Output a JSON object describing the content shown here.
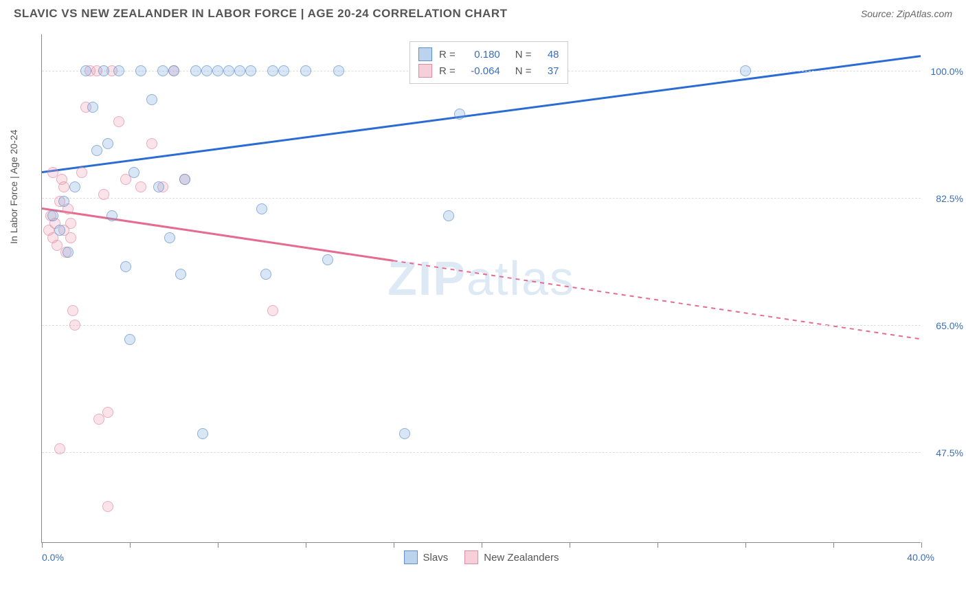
{
  "header": {
    "title": "SLAVIC VS NEW ZEALANDER IN LABOR FORCE | AGE 20-24 CORRELATION CHART",
    "source": "Source: ZipAtlas.com"
  },
  "axes": {
    "y_label": "In Labor Force | Age 20-24",
    "x_start": "0.0%",
    "x_end": "40.0%",
    "xlim": [
      0,
      40
    ],
    "ylim": [
      35,
      105
    ],
    "x_ticks": [
      0,
      4,
      8,
      12,
      16,
      20,
      24,
      28,
      32,
      36,
      40
    ],
    "y_ticks": [
      {
        "val": 100,
        "label": "100.0%"
      },
      {
        "val": 82.5,
        "label": "82.5%"
      },
      {
        "val": 65,
        "label": "65.0%"
      },
      {
        "val": 47.5,
        "label": "47.5%"
      }
    ]
  },
  "colors": {
    "blue_line": "#2b6cd4",
    "pink_line": "#e56b8f",
    "blue_fill": "rgba(122,167,220,0.4)",
    "pink_fill": "rgba(240,160,180,0.4)",
    "grid": "#dddddd",
    "text_axis": "#3b6fb5"
  },
  "series": {
    "slavs": {
      "label": "Slavs",
      "r_value": "0.180",
      "n_value": "48",
      "trend": {
        "x1": 0,
        "y1": 86,
        "x2": 40,
        "y2": 102,
        "solid_until_x": 40
      },
      "points": [
        [
          0.5,
          80
        ],
        [
          0.8,
          78
        ],
        [
          1.0,
          82
        ],
        [
          1.2,
          75
        ],
        [
          1.5,
          84
        ],
        [
          2.0,
          100
        ],
        [
          2.3,
          95
        ],
        [
          2.5,
          89
        ],
        [
          2.8,
          100
        ],
        [
          3.0,
          90
        ],
        [
          3.2,
          80
        ],
        [
          3.5,
          100
        ],
        [
          3.8,
          73
        ],
        [
          4.0,
          63
        ],
        [
          4.2,
          86
        ],
        [
          4.5,
          100
        ],
        [
          5.0,
          96
        ],
        [
          5.3,
          84
        ],
        [
          5.5,
          100
        ],
        [
          5.8,
          77
        ],
        [
          6.0,
          100
        ],
        [
          6.3,
          72
        ],
        [
          6.5,
          85
        ],
        [
          7.0,
          100
        ],
        [
          7.3,
          50
        ],
        [
          7.5,
          100
        ],
        [
          8.0,
          100
        ],
        [
          8.5,
          100
        ],
        [
          9.0,
          100
        ],
        [
          9.5,
          100
        ],
        [
          10.0,
          81
        ],
        [
          10.5,
          100
        ],
        [
          11.0,
          100
        ],
        [
          12.0,
          100
        ],
        [
          13.5,
          100
        ],
        [
          10.2,
          72
        ],
        [
          13.0,
          74
        ],
        [
          16.5,
          50
        ],
        [
          18.5,
          80
        ],
        [
          19.0,
          94
        ],
        [
          32.0,
          100
        ]
      ]
    },
    "new_zealanders": {
      "label": "New Zealanders",
      "r_value": "-0.064",
      "n_value": "37",
      "trend": {
        "x1": 0,
        "y1": 81,
        "x2": 40,
        "y2": 63,
        "solid_until_x": 16
      },
      "points": [
        [
          0.3,
          78
        ],
        [
          0.4,
          80
        ],
        [
          0.5,
          77
        ],
        [
          0.6,
          79
        ],
        [
          0.7,
          76
        ],
        [
          0.8,
          82
        ],
        [
          0.9,
          85
        ],
        [
          1.0,
          78
        ],
        [
          1.1,
          75
        ],
        [
          1.2,
          81
        ],
        [
          1.3,
          77
        ],
        [
          1.4,
          67
        ],
        [
          1.5,
          65
        ],
        [
          1.8,
          86
        ],
        [
          2.0,
          95
        ],
        [
          2.2,
          100
        ],
        [
          2.5,
          100
        ],
        [
          2.8,
          83
        ],
        [
          3.0,
          53
        ],
        [
          3.2,
          100
        ],
        [
          3.5,
          93
        ],
        [
          3.8,
          85
        ],
        [
          3.0,
          40
        ],
        [
          2.6,
          52
        ],
        [
          4.5,
          84
        ],
        [
          5.0,
          90
        ],
        [
          5.5,
          84
        ],
        [
          6.0,
          100
        ],
        [
          6.5,
          85
        ],
        [
          0.8,
          48
        ],
        [
          0.5,
          86
        ],
        [
          1.0,
          84
        ],
        [
          1.3,
          79
        ],
        [
          10.5,
          67
        ]
      ]
    }
  },
  "legend_top": {
    "r_label": "R =",
    "n_label": "N ="
  },
  "legend_bottom": {
    "slavs": "Slavs",
    "nz": "New Zealanders"
  },
  "watermark": {
    "zip": "ZIP",
    "atlas": "atlas"
  }
}
